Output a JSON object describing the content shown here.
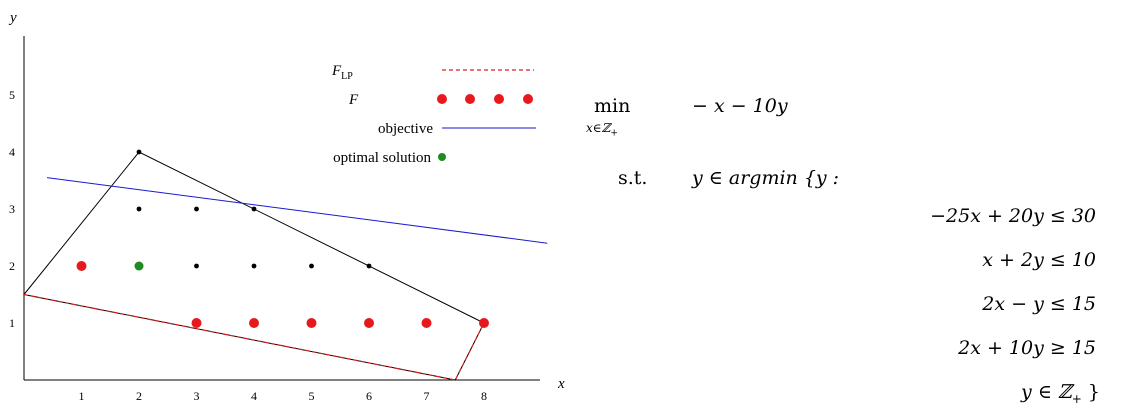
{
  "chart_data": {
    "type": "scatter",
    "xlabel": "x",
    "ylabel": "y",
    "x_ticks": [
      1,
      2,
      3,
      4,
      5,
      6,
      7,
      8
    ],
    "y_ticks": [
      1,
      2,
      3,
      4,
      5
    ],
    "xlim": [
      0,
      9.2
    ],
    "ylim": [
      0,
      6
    ],
    "legend": {
      "placement": "top-right",
      "entries": [
        {
          "sym": "F",
          "sub": "LP",
          "style": "dashed-line",
          "color": "#e8191c"
        },
        {
          "sym": "F",
          "sub": "",
          "style": "dots",
          "color": "#e8191c"
        },
        {
          "label": "objective",
          "style": "line",
          "color": "#1a1ad0"
        },
        {
          "label": "optimal solution",
          "style": "dot",
          "color": "#1e8c1e"
        }
      ]
    },
    "hpr_polygon": [
      [
        0,
        1.5
      ],
      [
        2,
        4
      ],
      [
        8,
        1
      ],
      [
        7.5,
        0
      ]
    ],
    "lp_polygon_dashed": [
      [
        0,
        1.5
      ],
      [
        7.5,
        0
      ],
      [
        8,
        1
      ]
    ],
    "objective_line": [
      [
        0.4,
        3.55
      ],
      [
        9.1,
        2.4
      ]
    ],
    "integer_points": [
      [
        2,
        3
      ],
      [
        3,
        3
      ],
      [
        4,
        3
      ],
      [
        3,
        2
      ],
      [
        4,
        2
      ],
      [
        5,
        2
      ],
      [
        6,
        2
      ],
      [
        2,
        4
      ]
    ],
    "bilevel_feasible": [
      [
        1,
        2
      ],
      [
        3,
        1
      ],
      [
        4,
        1
      ],
      [
        5,
        1
      ],
      [
        6,
        1
      ],
      [
        7,
        1
      ],
      [
        8,
        1
      ]
    ],
    "optimal_solution": [
      [
        2,
        2
      ]
    ],
    "colors": {
      "red": "#e8191c",
      "blue": "#1a1ad0",
      "green": "#1e8c1e",
      "black": "#000000"
    }
  },
  "formula": {
    "min_word": "min",
    "min_sub": "x∈ℤ",
    "min_sub_plus": "+",
    "objective": "− x − 10y",
    "st_word": "s.t.",
    "lower_head": "y ∈ argmin {y :",
    "constraints": [
      "−25x + 20y ≤ 30",
      "x + 2y ≤ 10",
      "2x − y ≤ 15",
      "2x + 10y ≥ 15"
    ],
    "domain_y": "y ∈ ℤ",
    "domain_plus": "+",
    "close_brace": " }"
  }
}
